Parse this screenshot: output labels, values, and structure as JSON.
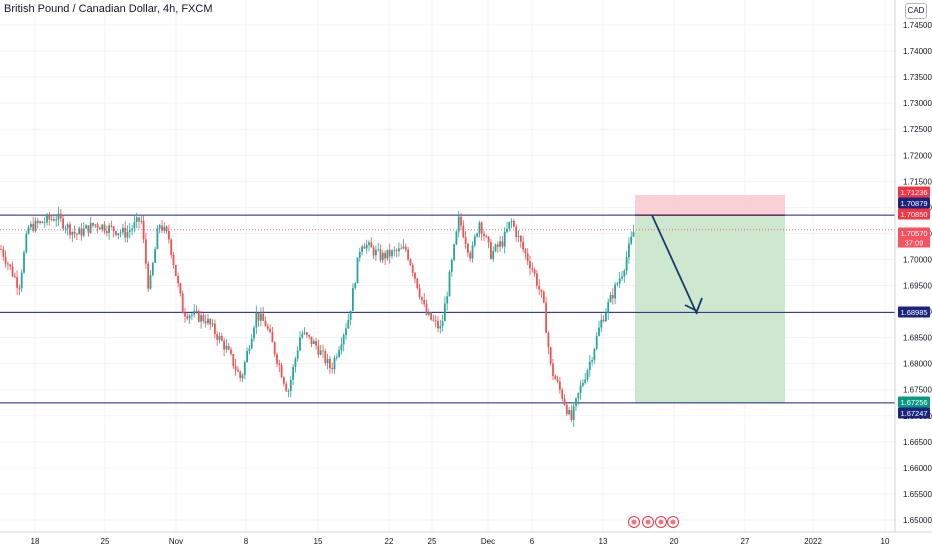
{
  "header": {
    "title": "British Pound / Canadian Dollar, 4h, FXCM",
    "currency": "CAD"
  },
  "colors": {
    "up": "#26a69a",
    "down": "#ef5350",
    "hline": "#1a237e",
    "stop_zone": "#f8c8cc",
    "target_zone": "#c8e6c9",
    "arrow": "#1a3a6e",
    "grid": "#f0f3fa"
  },
  "chart_data": {
    "type": "candlestick",
    "ylim": [
      1.648,
      1.748
    ],
    "y_ticks": [
      "1.74500",
      "1.74000",
      "1.73500",
      "1.73000",
      "1.72500",
      "1.72000",
      "1.71500",
      "1.71000",
      "1.70500",
      "1.70000",
      "1.69500",
      "1.69000",
      "1.68500",
      "1.68000",
      "1.67500",
      "1.67000",
      "1.66500",
      "1.66000",
      "1.65500",
      "1.65000"
    ],
    "x_ticks": [
      "18",
      "25",
      "Nov",
      "8",
      "15",
      "22",
      "25",
      "Dec",
      "6",
      "13",
      "20",
      "27",
      "2022",
      "10"
    ],
    "price_path": [
      [
        0,
        1.702
      ],
      [
        18,
        1.6948
      ],
      [
        27,
        1.706
      ],
      [
        55,
        1.7082
      ],
      [
        75,
        1.7048
      ],
      [
        95,
        1.7068
      ],
      [
        125,
        1.705
      ],
      [
        140,
        1.7078
      ],
      [
        148,
        1.694
      ],
      [
        158,
        1.707
      ],
      [
        168,
        1.704
      ],
      [
        182,
        1.69
      ],
      [
        205,
        1.6885
      ],
      [
        225,
        1.683
      ],
      [
        240,
        1.677
      ],
      [
        255,
        1.6895
      ],
      [
        265,
        1.6875
      ],
      [
        287,
        1.6745
      ],
      [
        300,
        1.686
      ],
      [
        315,
        1.6835
      ],
      [
        330,
        1.679
      ],
      [
        348,
        1.689
      ],
      [
        360,
        1.7035
      ],
      [
        380,
        1.7005
      ],
      [
        405,
        1.702
      ],
      [
        412,
        1.698
      ],
      [
        425,
        1.6895
      ],
      [
        440,
        1.6865
      ],
      [
        458,
        1.7078
      ],
      [
        470,
        1.7005
      ],
      [
        478,
        1.7075
      ],
      [
        490,
        1.701
      ],
      [
        502,
        1.7035
      ],
      [
        510,
        1.7075
      ],
      [
        522,
        1.702
      ],
      [
        532,
        1.698
      ],
      [
        542,
        1.692
      ],
      [
        550,
        1.679
      ],
      [
        562,
        1.6735
      ],
      [
        570,
        1.669
      ],
      [
        578,
        1.6745
      ],
      [
        590,
        1.681
      ],
      [
        600,
        1.688
      ],
      [
        612,
        1.6935
      ],
      [
        622,
        1.698
      ],
      [
        634,
        1.7063
      ]
    ],
    "levels": [
      {
        "name": "resistance",
        "price": 1.7085,
        "label": "1.70850"
      },
      {
        "name": "support-mid",
        "price": 1.68985,
        "label": "1.68985"
      },
      {
        "name": "support-low",
        "price": 1.67247,
        "label": "1.67247"
      }
    ],
    "position": {
      "type": "short",
      "entry": 1.7085,
      "stop": 1.71236,
      "target": 1.67256
    },
    "price_labels": [
      {
        "price": 1.71236,
        "text": "1.71236",
        "color": "#f23645"
      },
      {
        "price": 1.70879,
        "text": "1.70879",
        "color": "#1a237e"
      },
      {
        "price": 1.7085,
        "text": "1.70850",
        "color": "#f23645"
      },
      {
        "price": 1.7057,
        "text": "1.70570",
        "sub": "37:09",
        "color": "#f7525f"
      },
      {
        "price": 1.68985,
        "text": "1.68985",
        "color": "#1a237e"
      },
      {
        "price": 1.67256,
        "text": "1.67256",
        "color": "#089981"
      },
      {
        "price": 1.67247,
        "text": "1.67247",
        "color": "#1a237e"
      }
    ],
    "last_price": 1.7057
  }
}
